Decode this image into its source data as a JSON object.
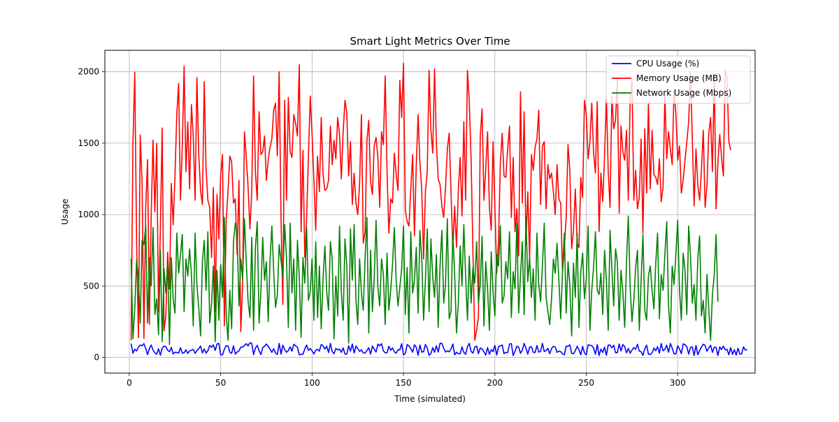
{
  "chart_data": {
    "type": "line",
    "title": "Smart Light Metrics Over Time",
    "xlabel": "Time (simulated)",
    "ylabel": "Usage",
    "xlim": [
      -13.35,
      342.35
    ],
    "ylim": [
      -110,
      2150
    ],
    "xticks": [
      0,
      50,
      100,
      150,
      200,
      250,
      300
    ],
    "yticks": [
      0,
      500,
      1000,
      1500,
      2000
    ],
    "grid": true,
    "legend_position": "upper right",
    "series": [
      {
        "name": "CPU Usage (%)",
        "color": "#0000ff",
        "values": [
          97,
          29,
          57,
          45,
          72,
          86,
          81,
          96,
          63,
          19,
          62,
          87,
          51,
          32,
          22,
          60,
          15,
          65,
          79,
          74,
          50,
          40,
          70,
          24,
          36,
          34,
          31,
          68,
          30,
          32,
          53,
          28,
          46,
          50,
          56,
          28,
          48,
          60,
          80,
          31,
          59,
          30,
          47,
          83,
          71,
          87,
          49,
          93,
          98,
          18,
          18,
          57,
          82,
          80,
          35,
          28,
          81,
          23,
          37,
          46,
          72,
          72,
          83,
          96,
          80,
          102,
          99,
          19,
          65,
          84,
          46,
          20,
          69,
          78,
          94,
          77,
          58,
          35,
          61,
          30,
          21,
          98,
          23,
          85,
          54,
          36,
          48,
          73,
          43,
          92,
          81,
          70,
          18,
          21,
          22,
          59,
          86,
          49,
          62,
          46,
          24,
          50,
          57,
          44,
          90,
          82,
          58,
          78,
          34,
          98,
          42,
          25,
          62,
          52,
          58,
          35,
          66,
          23,
          24,
          82,
          43,
          94,
          30,
          79,
          61,
          41,
          53,
          31,
          30,
          48,
          68,
          23,
          79,
          58,
          37,
          93,
          81,
          96,
          46,
          32,
          33,
          77,
          50,
          66,
          39,
          29,
          54,
          52,
          96,
          18,
          27,
          90,
          80,
          62,
          36,
          88,
          70,
          15,
          87,
          37,
          40,
          90,
          66,
          14,
          26,
          68,
          36,
          81,
          37,
          99,
          98,
          64,
          37,
          46,
          39,
          58,
          94,
          18,
          36,
          26,
          25,
          74,
          35,
          22,
          75,
          98,
          42,
          30,
          72,
          80,
          26,
          66,
          59,
          39,
          16,
          69,
          22,
          54,
          40,
          84,
          17,
          75,
          80,
          87,
          26,
          35,
          33,
          94,
          96,
          13,
          43,
          78,
          71,
          29,
          50,
          98,
          65,
          23,
          72,
          75,
          36,
          34,
          83,
          37,
          42,
          98,
          41,
          48,
          63,
          26,
          63,
          77,
          73,
          35,
          44,
          40,
          25,
          18,
          78,
          78,
          88,
          28,
          26,
          46,
          78,
          53,
          18,
          77,
          32,
          18,
          88,
          85,
          82,
          66,
          22,
          89,
          13,
          58,
          34,
          72,
          15,
          86,
          86,
          67,
          85,
          33,
          33,
          94,
          45,
          90,
          76,
          32,
          63,
          29,
          51,
          69,
          57,
          92,
          44,
          40,
          14,
          60,
          86,
          23,
          19,
          32,
          65,
          47,
          75,
          29,
          97,
          46,
          57,
          85,
          36,
          97,
          65,
          25,
          24,
          81,
          59,
          26,
          95,
          89,
          74,
          23,
          70,
          74,
          13,
          83,
          18,
          48,
          72,
          92,
          84,
          43,
          65,
          85,
          35,
          70,
          70,
          13,
          73,
          55,
          79,
          53,
          56,
          18,
          68,
          21,
          54,
          16,
          64,
          23,
          24,
          74,
          51,
          55
        ]
      },
      {
        "name": "Memory Usage (MB)",
        "color": "#ff0000",
        "values": [
          119,
          1490,
          1997,
          820,
          138,
          1557,
          1225,
          133,
          1050,
          1385,
          231,
          1006,
          1521,
          1019,
          1500,
          318,
          887,
          1606,
          186,
          290,
          736,
          479,
          1217,
          928,
          1269,
          1708,
          1918,
          1101,
          1481,
          2040,
          1300,
          1650,
          1180,
          1770,
          1550,
          1100,
          1960,
          1420,
          1170,
          1070,
          1930,
          1320,
          1100,
          1050,
          700,
          1190,
          320,
          1140,
          830,
          1280,
          1420,
          220,
          950,
          1160,
          1410,
          1370,
          1080,
          1110,
          720,
          1240,
          180,
          510,
          1580,
          1400,
          1190,
          900,
          1160,
          1970,
          1300,
          1100,
          1720,
          1420,
          1440,
          1550,
          1240,
          1380,
          1470,
          1530,
          1730,
          1780,
          1410,
          2000,
          980,
          370,
          1800,
          1100,
          1820,
          1440,
          1400,
          1700,
          1640,
          1550,
          2050,
          880,
          1450,
          700,
          970,
          1410,
          1830,
          1560,
          1240,
          890,
          1410,
          1160,
          1680,
          1280,
          1170,
          1180,
          1240,
          1620,
          1350,
          1520,
          1390,
          1680,
          1560,
          1250,
          1580,
          1800,
          1710,
          1270,
          1510,
          1070,
          1290,
          1080,
          1000,
          1220,
          1700,
          800,
          880,
          1520,
          1660,
          1230,
          1140,
          1480,
          1540,
          1400,
          1050,
          1580,
          1490,
          1970,
          1300,
          870,
          1110,
          1080,
          1430,
          1280,
          1170,
          1940,
          1680,
          2060,
          1030,
          950,
          920,
          1180,
          1420,
          850,
          1350,
          1700,
          1360,
          1170,
          690,
          1160,
          1300,
          2010,
          1590,
          1430,
          2020,
          1500,
          1250,
          1210,
          1060,
          980,
          1190,
          1460,
          1570,
          1160,
          760,
          1060,
          770,
          1170,
          1400,
          990,
          1650,
          1100,
          2010,
          1790,
          1380,
          740,
          120,
          190,
          280,
          1550,
          1740,
          1100,
          1320,
          1580,
          1050,
          890,
          1510,
          1060,
          590,
          820,
          1360,
          1570,
          1270,
          1260,
          1460,
          1620,
          980,
          1400,
          880,
          1040,
          710,
          1860,
          1080,
          1720,
          790,
          1160,
          690,
          1420,
          1310,
          1470,
          1530,
          1730,
          1070,
          1480,
          1510,
          1040,
          1350,
          1250,
          1290,
          1160,
          1000,
          1350,
          1110,
          1080,
          600,
          770,
          980,
          1490,
          1310,
          760,
          890,
          1180,
          800,
          770,
          1260,
          1120,
          1800,
          1700,
          1390,
          1510,
          1780,
          1430,
          1290,
          1790,
          880,
          1290,
          1090,
          1410,
          1820,
          1300,
          1050,
          1830,
          1600,
          1660,
          1950,
          1010,
          1620,
          1440,
          1380,
          1590,
          1100,
          1810,
          1950,
          1100,
          1310,
          1040,
          1120,
          1530,
          870,
          1600,
          1150,
          1780,
          1180,
          1590,
          1280,
          1260,
          1210,
          1390,
          1090,
          1190,
          1840,
          1390,
          1580,
          1460,
          1350,
          1870,
          1710,
          1380,
          1480,
          1150,
          1240,
          1380,
          1510,
          1650,
          2000,
          1530,
          1060,
          1460,
          1210,
          1100,
          1310,
          1590,
          1050,
          1200,
          1570,
          1680,
          1300,
          1980,
          1040,
          1360,
          1560,
          1400,
          1270,
          2010,
          1960,
          1510,
          1450
        ]
      },
      {
        "name": "Network Usage (Mbps)",
        "color": "#008000",
        "values": [
          690,
          130,
          340,
          680,
          560,
          240,
          820,
          790,
          920,
          240,
          700,
          500,
          910,
          300,
          410,
          160,
          750,
          110,
          620,
          450,
          670,
          90,
          700,
          410,
          310,
          870,
          590,
          720,
          860,
          320,
          690,
          570,
          760,
          580,
          220,
          870,
          510,
          350,
          150,
          670,
          820,
          470,
          880,
          240,
          380,
          640,
          110,
          610,
          260,
          650,
          420,
          980,
          310,
          120,
          470,
          200,
          810,
          940,
          860,
          360,
          690,
          550,
          970,
          670,
          390,
          280,
          840,
          190,
          770,
          950,
          240,
          460,
          840,
          540,
          670,
          250,
          680,
          920,
          600,
          350,
          440,
          790,
          680,
          560,
          930,
          700,
          210,
          940,
          450,
          690,
          190,
          820,
          560,
          140,
          700,
          520,
          910,
          400,
          460,
          690,
          260,
          810,
          280,
          640,
          200,
          550,
          780,
          460,
          330,
          810,
          690,
          130,
          570,
          290,
          920,
          460,
          260,
          830,
          640,
          100,
          900,
          540,
          930,
          400,
          230,
          690,
          450,
          330,
          690,
          980,
          170,
          750,
          320,
          560,
          960,
          490,
          360,
          690,
          580,
          230,
          730,
          330,
          470,
          650,
          910,
          540,
          360,
          490,
          620,
          920,
          300,
          630,
          170,
          880,
          450,
          540,
          770,
          310,
          890,
          690,
          260,
          540,
          900,
          320,
          830,
          560,
          420,
          720,
          210,
          640,
          890,
          380,
          510,
          970,
          270,
          320,
          870,
          580,
          170,
          380,
          780,
          500,
          930,
          570,
          260,
          710,
          380,
          630,
          520,
          810,
          380,
          510,
          850,
          220,
          670,
          480,
          190,
          740,
          460,
          290,
          720,
          640,
          920,
          380,
          430,
          670,
          550,
          880,
          280,
          600,
          480,
          940,
          310,
          570,
          810,
          300,
          990,
          530,
          700,
          420,
          620,
          260,
          870,
          510,
          390,
          640,
          940,
          420,
          320,
          230,
          410,
          690,
          590,
          800,
          540,
          270,
          600,
          870,
          310,
          670,
          510,
          150,
          660,
          420,
          870,
          210,
          600,
          730,
          410,
          550,
          920,
          190,
          470,
          630,
          880,
          470,
          440,
          590,
          300,
          750,
          540,
          190,
          890,
          620,
          360,
          760,
          670,
          260,
          610,
          460,
          210,
          670,
          990,
          490,
          250,
          400,
          630,
          750,
          190,
          540,
          860,
          330,
          260,
          570,
          640,
          470,
          340,
          660,
          870,
          270,
          580,
          470,
          720,
          950,
          360,
          170,
          640,
          510,
          720,
          960,
          470,
          260,
          730,
          610,
          300,
          920,
          710,
          380,
          510,
          260,
          690,
          850,
          290,
          400,
          170,
          580,
          340,
          120,
          440,
          580,
          860,
          390
        ]
      }
    ]
  }
}
